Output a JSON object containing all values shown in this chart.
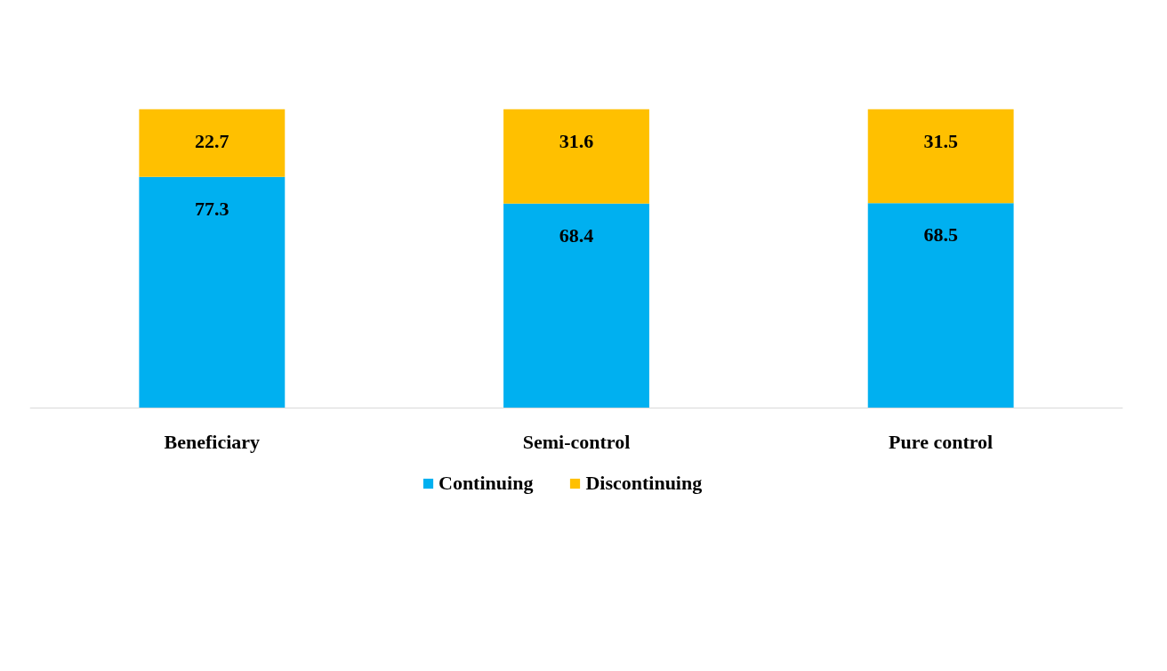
{
  "chart_data": {
    "type": "bar",
    "stacked": true,
    "data_labels": true,
    "legend": "bottom",
    "grid": false,
    "categories": [
      "Beneficiary",
      "Semi-control",
      "Pure control"
    ],
    "series": [
      {
        "name": "Continuing",
        "color": "#00b0f0",
        "values": [
          77.3,
          68.4,
          68.5
        ]
      },
      {
        "name": "Discontinuing",
        "color": "#ffc000",
        "values": [
          22.7,
          31.6,
          31.5
        ]
      }
    ]
  }
}
